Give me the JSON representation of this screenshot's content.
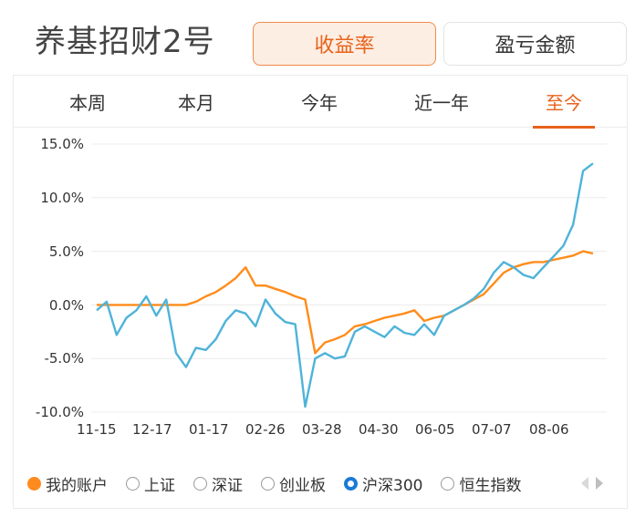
{
  "header": {
    "title": "养基招财2号",
    "btn_active": "收益率",
    "btn_inactive": "盈亏金额"
  },
  "tabs": [
    {
      "label": "本周"
    },
    {
      "label": "本月"
    },
    {
      "label": "今年"
    },
    {
      "label": "近一年"
    },
    {
      "label": "至今"
    }
  ],
  "legend": [
    {
      "label": "我的账户",
      "state": "selected-orange"
    },
    {
      "label": "上证",
      "state": "unselected"
    },
    {
      "label": "深证",
      "state": "unselected"
    },
    {
      "label": "创业板",
      "state": "unselected"
    },
    {
      "label": "沪深300",
      "state": "selected-blue"
    },
    {
      "label": "恒生指数",
      "state": "unselected"
    }
  ],
  "colors": {
    "accent": "#e8621a",
    "series_account": "#ff8c1a",
    "series_hs300": "#4fb3d9"
  },
  "chart_data": {
    "type": "line",
    "y_tick_labels": [
      "15.0%",
      "10.0%",
      "5.0%",
      "0.0%",
      "-5.0%",
      "-10.0%"
    ],
    "ylim": [
      -10,
      15
    ],
    "x_tick_labels": [
      "11-15",
      "12-17",
      "01-17",
      "02-26",
      "03-28",
      "04-30",
      "06-05",
      "07-07",
      "08-06"
    ],
    "series": [
      {
        "name": "我的账户",
        "x": [
          0,
          2,
          4,
          6,
          8,
          10,
          12,
          14,
          16,
          18,
          20,
          22,
          24,
          26,
          28,
          30,
          32,
          34,
          36,
          38,
          40,
          42,
          44,
          46,
          48,
          50,
          52,
          54,
          56,
          58,
          60,
          62,
          64,
          66,
          68,
          70,
          72,
          74,
          76,
          78,
          80,
          82,
          84,
          86,
          88,
          90,
          92,
          94,
          96,
          98,
          100
        ],
        "values": [
          0,
          0,
          0,
          0,
          0,
          0,
          0,
          0,
          0,
          0,
          0.3,
          0.8,
          1.2,
          1.8,
          2.5,
          3.5,
          1.8,
          1.8,
          1.5,
          1.2,
          0.8,
          0.5,
          -4.5,
          -3.5,
          -3.2,
          -2.8,
          -2.0,
          -1.8,
          -1.5,
          -1.2,
          -1.0,
          -0.8,
          -0.5,
          -1.5,
          -1.2,
          -1.0,
          -0.5,
          0,
          0.5,
          1.0,
          2.0,
          3.0,
          3.5,
          3.8,
          4.0,
          4.0,
          4.2,
          4.4,
          4.6,
          5.0,
          4.8
        ]
      },
      {
        "name": "沪深300",
        "x": [
          0,
          2,
          4,
          6,
          8,
          10,
          12,
          14,
          16,
          18,
          20,
          22,
          24,
          26,
          28,
          30,
          32,
          34,
          36,
          38,
          40,
          42,
          44,
          46,
          48,
          50,
          52,
          54,
          56,
          58,
          60,
          62,
          64,
          66,
          68,
          70,
          72,
          74,
          76,
          78,
          80,
          82,
          84,
          86,
          88,
          90,
          92,
          94,
          96,
          98,
          100
        ],
        "values": [
          -0.5,
          0.3,
          -2.8,
          -1.2,
          -0.5,
          0.8,
          -1.0,
          0.5,
          -4.5,
          -5.8,
          -4.0,
          -4.2,
          -3.2,
          -1.5,
          -0.5,
          -0.8,
          -2.0,
          0.5,
          -0.8,
          -1.6,
          -1.8,
          -9.5,
          -5.0,
          -4.5,
          -5.0,
          -4.8,
          -2.5,
          -2.0,
          -2.5,
          -3.0,
          -2.0,
          -2.6,
          -2.8,
          -1.8,
          -2.8,
          -1.0,
          -0.5,
          0,
          0.6,
          1.5,
          3.0,
          4.0,
          3.5,
          2.8,
          2.5,
          3.5,
          4.5,
          5.5,
          7.5,
          12.5,
          13.2
        ]
      }
    ],
    "grid": true,
    "legend_position": "bottom"
  }
}
